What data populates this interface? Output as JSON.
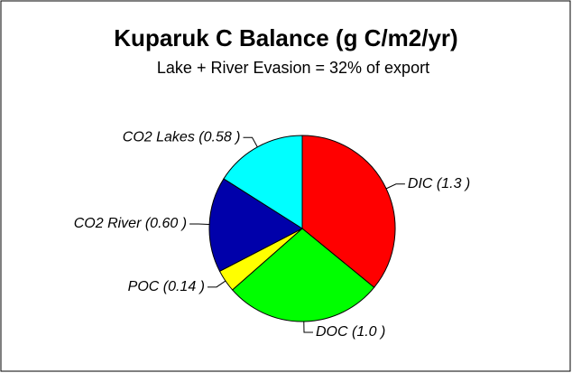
{
  "chart_data": {
    "type": "pie",
    "title": "Kuparuk C Balance (g C/m2/yr)",
    "subtitle": "Lake + River Evasion = 32% of export",
    "values": [
      1.3,
      1.0,
      0.14,
      0.6,
      0.58
    ],
    "value_labels": [
      "DIC (1.3 )",
      "DOC (1.0 )",
      "POC (0.14 )",
      "CO2 River (0.60 )",
      "CO2 Lakes (0.58 )"
    ],
    "colors": [
      "#ff0000",
      "#00ff00",
      "#ffff00",
      "#0000aa",
      "#00ffff"
    ]
  }
}
